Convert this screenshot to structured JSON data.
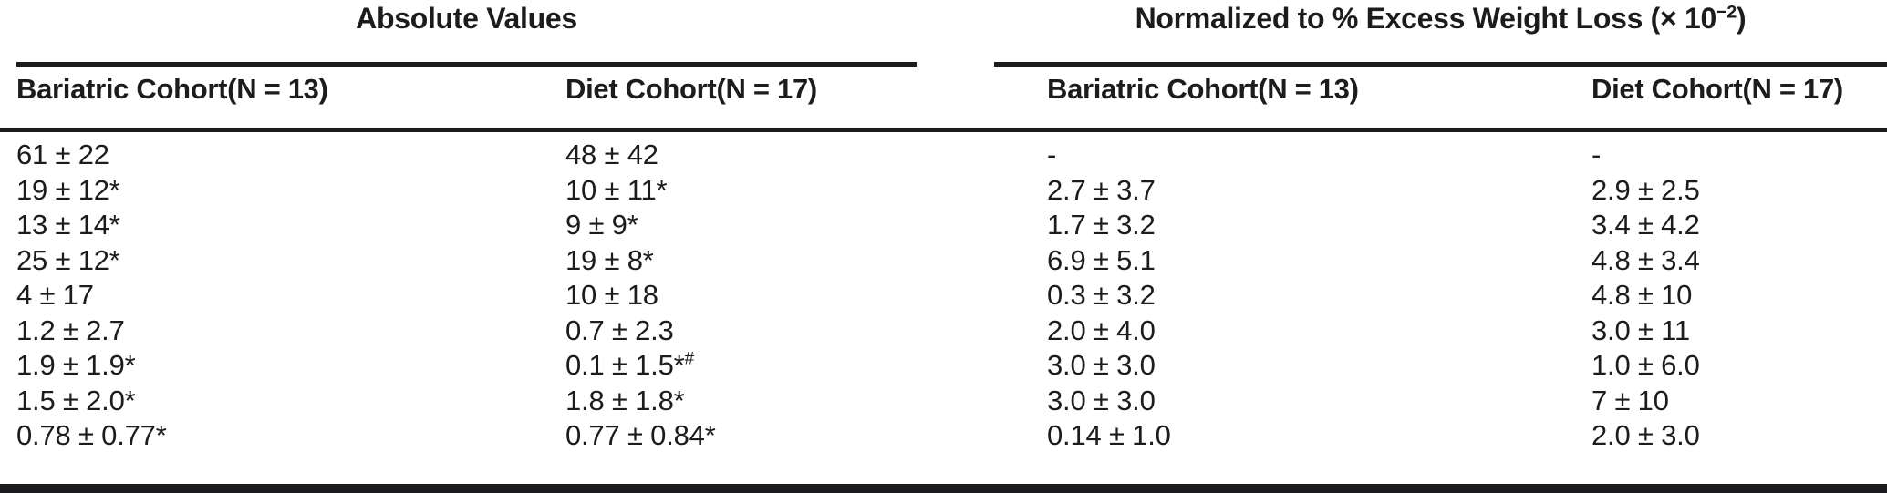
{
  "table": {
    "sections": {
      "absolute": {
        "title": "Absolute Values"
      },
      "normalized": {
        "prefix": "Normalized to % Excess Weight Loss (× 10",
        "exponent": "−2",
        "suffix": ")"
      }
    },
    "columns": [
      "Bariatric Cohort(N = 13)",
      "Diet Cohort(N = 17)",
      "Bariatric Cohort(N = 13)",
      "Diet Cohort(N = 17)"
    ],
    "rows": [
      [
        "61 ± 22",
        "48 ± 42",
        "-",
        "-"
      ],
      [
        "19 ± 12*",
        "10 ± 11*",
        "2.7 ± 3.7",
        "2.9 ± 2.5"
      ],
      [
        "13 ± 14*",
        "9 ± 9*",
        "1.7 ± 3.2",
        "3.4 ± 4.2"
      ],
      [
        "25 ± 12*",
        "19 ± 8*",
        "6.9 ± 5.1",
        "4.8 ± 3.4"
      ],
      [
        "4 ± 17",
        "10 ± 18",
        "0.3 ± 3.2",
        "4.8 ± 10"
      ],
      [
        "1.2 ± 2.7",
        "0.7 ± 2.3",
        "2.0 ± 4.0",
        "3.0 ± 11"
      ],
      [
        "1.9 ± 1.9*",
        "0.1 ± 1.5*",
        "3.0 ± 3.0",
        "1.0 ± 6.0"
      ],
      [
        "1.5 ± 2.0*",
        "1.8 ± 1.8*",
        "3.0 ± 3.0",
        "7 ± 10"
      ],
      [
        "0.78 ± 0.77*",
        "0.77 ± 0.84*",
        "0.14 ± 1.0",
        "2.0 ± 3.0"
      ]
    ],
    "footnote_marker": "#",
    "colors": {
      "text": "#1c1c1e",
      "rule": "#1c1c1e",
      "background": "#ffffff"
    }
  }
}
